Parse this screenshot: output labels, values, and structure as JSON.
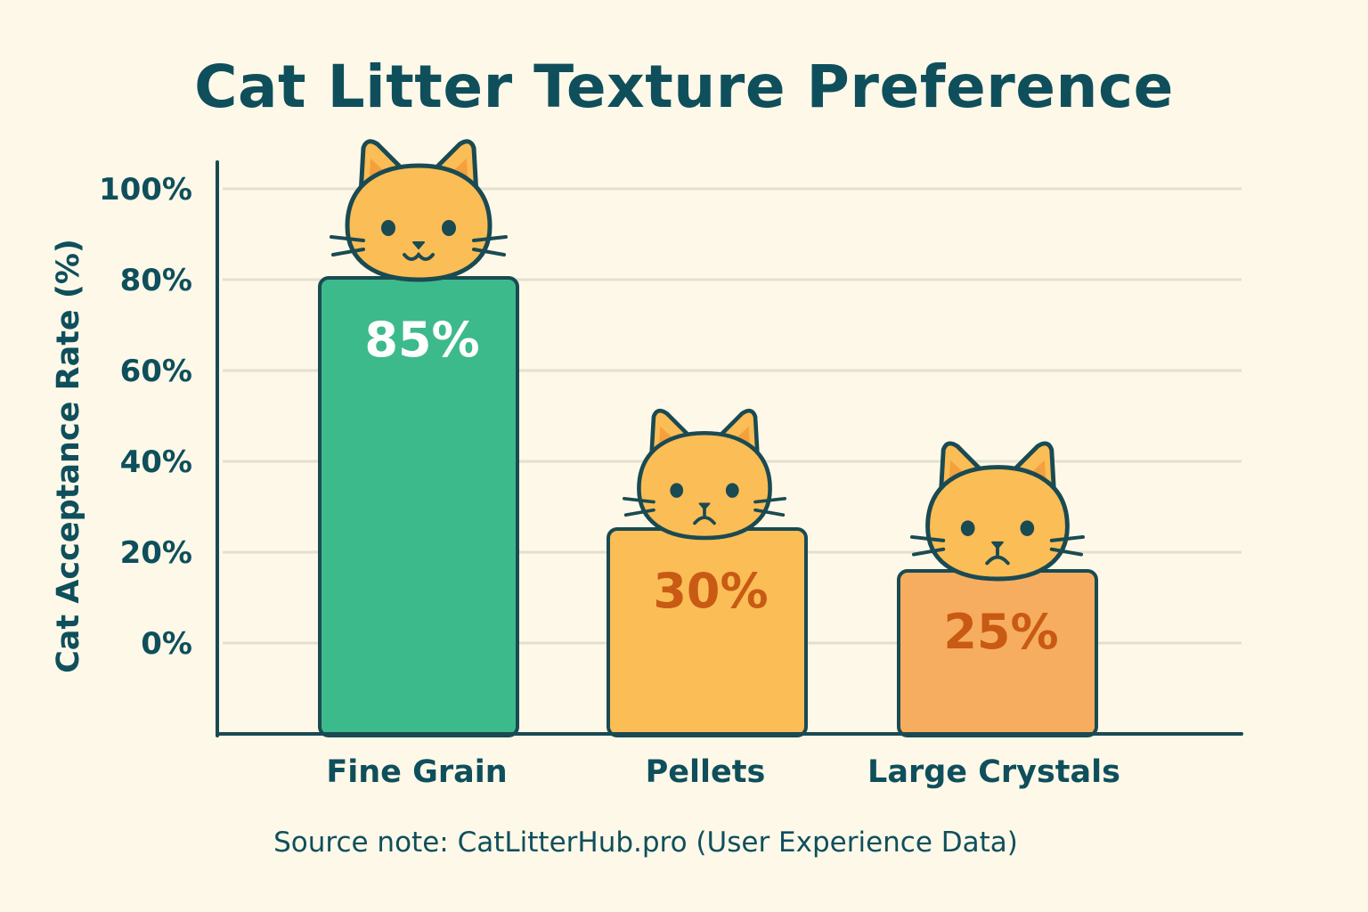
{
  "chart_data": {
    "type": "bar",
    "title": "Cat Litter Texture Preference",
    "xlabel": "",
    "ylabel": "Cat Acceptance Rate (%)",
    "ylim": [
      0,
      100
    ],
    "yticks": [
      "0%",
      "20%",
      "40%",
      "60%",
      "80%",
      "100%"
    ],
    "grid": true,
    "categories": [
      "Fine Grain",
      "Pellets",
      "Large Crystals"
    ],
    "values": [
      85,
      30,
      25
    ],
    "value_labels": [
      "85%",
      "30%",
      "25%"
    ],
    "bar_colors": [
      "#3dba8c",
      "#fbbd55",
      "#f7ad5f"
    ],
    "value_label_colors": [
      "#ffffff",
      "#c85a14",
      "#c85a14"
    ],
    "cat_faces": [
      "happy-cat-icon",
      "sad-cat-icon",
      "sad-cat-icon"
    ]
  },
  "source_note": "Source note: CatLitterHub.pro (User Experience Data)",
  "colors": {
    "background": "#fdf8e8",
    "text": "#0f4f5c",
    "axis": "#1a4a52",
    "grid": "#e4e0d0",
    "cat_fur": "#fbbd55",
    "cat_ear_inner": "#f4a03c"
  }
}
